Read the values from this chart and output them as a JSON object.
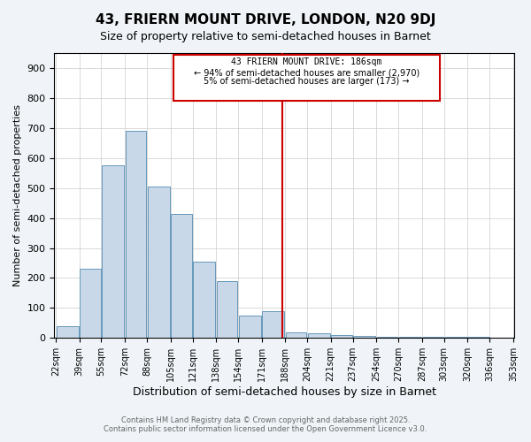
{
  "title": "43, FRIERN MOUNT DRIVE, LONDON, N20 9DJ",
  "subtitle": "Size of property relative to semi-detached houses in Barnet",
  "xlabel": "Distribution of semi-detached houses by size in Barnet",
  "ylabel": "Number of semi-detached properties",
  "bar_color": "#c8d8e8",
  "bar_edge_color": "#6699bb",
  "annotation_box_color": "#cc0000",
  "vline_color": "#cc0000",
  "property_size": 186,
  "annotation_title": "43 FRIERN MOUNT DRIVE: 186sqm",
  "annotation_line1": "← 94% of semi-detached houses are smaller (2,970)",
  "annotation_line2": "5% of semi-detached houses are larger (173) →",
  "footer_line1": "Contains HM Land Registry data © Crown copyright and database right 2025.",
  "footer_line2": "Contains public sector information licensed under the Open Government Licence v3.0.",
  "bins": [
    22,
    39,
    55,
    72,
    88,
    105,
    121,
    138,
    154,
    171,
    188,
    204,
    221,
    237,
    254,
    270,
    287,
    303,
    320,
    336,
    353
  ],
  "bin_labels": [
    "22sqm",
    "39sqm",
    "55sqm",
    "72sqm",
    "88sqm",
    "105sqm",
    "121sqm",
    "138sqm",
    "154sqm",
    "171sqm",
    "188sqm",
    "204sqm",
    "221sqm",
    "237sqm",
    "254sqm",
    "270sqm",
    "287sqm",
    "303sqm",
    "320sqm",
    "336sqm",
    "353sqm"
  ],
  "counts": [
    40,
    230,
    575,
    690,
    505,
    415,
    255,
    190,
    75,
    90,
    20,
    15,
    10,
    8,
    5,
    5,
    5,
    5,
    3,
    2
  ],
  "ylim": [
    0,
    950
  ],
  "yticks": [
    0,
    100,
    200,
    300,
    400,
    500,
    600,
    700,
    800,
    900
  ],
  "background_color": "#f0f4f8",
  "plot_bg_color": "#ffffff"
}
